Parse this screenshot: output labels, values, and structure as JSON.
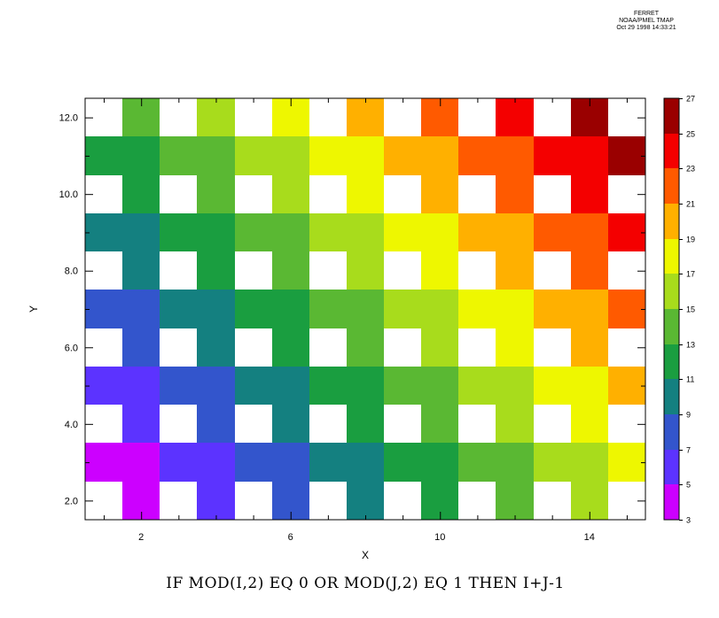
{
  "header": {
    "line1": "FERRET",
    "line2": "NOAA/PMEL TMAP",
    "line3": "Oct 29 1998 14:33:21"
  },
  "caption": "IF MOD(I,2) EQ 0 OR MOD(J,2) EQ 1 THEN I+J-1",
  "chart_data": {
    "type": "heatmap",
    "xlabel": "X",
    "ylabel": "Y",
    "x": [
      1,
      2,
      3,
      4,
      5,
      6,
      7,
      8,
      9,
      10,
      11,
      12,
      13,
      14,
      15
    ],
    "y": [
      2,
      3,
      4,
      5,
      6,
      7,
      8,
      9,
      10,
      11,
      12
    ],
    "xlim": [
      0.5,
      15.5
    ],
    "ylim": [
      1.5,
      12.5
    ],
    "x_ticks": [
      2,
      6,
      10,
      14
    ],
    "x_tick_labels": [
      "2",
      "6",
      "10",
      "14"
    ],
    "y_ticks": [
      2,
      4,
      6,
      8,
      10,
      12
    ],
    "y_tick_labels": [
      "2.0",
      "4.0",
      "6.0",
      "8.0",
      "10.0",
      "12.0"
    ],
    "formula": "IF MOD(I,2) EQ 0 OR MOD(J,2) EQ 1 THEN I+J-1",
    "missing_value": null,
    "colorbar": {
      "levels": [
        3,
        5,
        7,
        9,
        11,
        13,
        15,
        17,
        19,
        21,
        23,
        25,
        27
      ],
      "labels": [
        "3",
        "5",
        "7",
        "9",
        "11",
        "13",
        "15",
        "17",
        "19",
        "21",
        "23",
        "25",
        "27"
      ],
      "colors": [
        "#cc00ff",
        "#cc00ff",
        "#5c33ff",
        "#5c33ff",
        "#3355cc",
        "#3355cc",
        "#148080",
        "#148080",
        "#1a9e40",
        "#1a9e40",
        "#5ab833",
        "#5ab833",
        "#a8dc1c",
        "#a8dc1c",
        "#eef700",
        "#eef700",
        "#ffb000",
        "#ffb000",
        "#ff5a00",
        "#ff5a00",
        "#f40000",
        "#f40000",
        "#9a0000",
        "#9a0000"
      ]
    }
  }
}
